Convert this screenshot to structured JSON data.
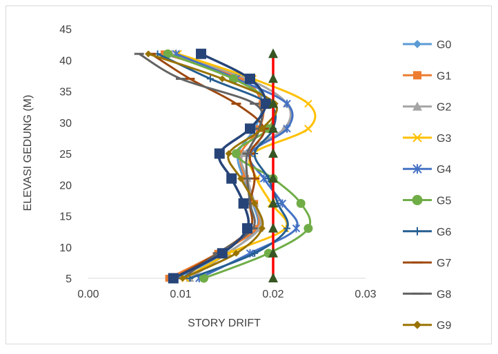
{
  "chart_data": {
    "type": "line",
    "xlabel": "STORY DRIFT",
    "ylabel": "ELEVASI GEDUNG (M)",
    "xlim": [
      0,
      0.03
    ],
    "ylim": [
      5,
      45
    ],
    "x_ticks": [
      "0.00",
      "0.01",
      "0.02",
      "0.03"
    ],
    "y_ticks": [
      "5",
      "10",
      "15",
      "20",
      "25",
      "30",
      "35",
      "40",
      "45"
    ],
    "grid": false,
    "legend_position": "right",
    "smooth": true,
    "series": [
      {
        "name": "G0",
        "color": "#5B9BD5",
        "marker": "diamond",
        "points": [
          [
            0.0094,
            5
          ],
          [
            0.015,
            9
          ],
          [
            0.0182,
            13
          ],
          [
            0.0178,
            17
          ],
          [
            0.0168,
            21
          ],
          [
            0.0162,
            25
          ],
          [
            0.018,
            29
          ],
          [
            0.0188,
            33
          ],
          [
            0.0172,
            37
          ],
          [
            0.0086,
            41
          ]
        ]
      },
      {
        "name": "G1",
        "color": "#ED7D31",
        "marker": "square",
        "points": [
          [
            0.0087,
            5
          ],
          [
            0.014,
            9
          ],
          [
            0.0182,
            13
          ],
          [
            0.018,
            17
          ],
          [
            0.017,
            21
          ],
          [
            0.0165,
            25
          ],
          [
            0.0185,
            29
          ],
          [
            0.0188,
            33
          ],
          [
            0.0165,
            37
          ],
          [
            0.0082,
            41
          ]
        ]
      },
      {
        "name": "G2",
        "color": "#A5A5A5",
        "marker": "triangle",
        "points": [
          [
            0.011,
            5
          ],
          [
            0.015,
            9
          ],
          [
            0.0185,
            13
          ],
          [
            0.018,
            17
          ],
          [
            0.0172,
            21
          ],
          [
            0.0168,
            25
          ],
          [
            0.0212,
            29
          ],
          [
            0.0215,
            33
          ],
          [
            0.0172,
            37
          ],
          [
            0.009,
            41
          ]
        ]
      },
      {
        "name": "G3",
        "color": "#FFC000",
        "marker": "x",
        "points": [
          [
            0.0105,
            5
          ],
          [
            0.0152,
            9
          ],
          [
            0.0213,
            13
          ],
          [
            0.0198,
            17
          ],
          [
            0.0182,
            21
          ],
          [
            0.0178,
            25
          ],
          [
            0.0238,
            29
          ],
          [
            0.0238,
            33
          ],
          [
            0.0178,
            37
          ],
          [
            0.0097,
            41
          ]
        ]
      },
      {
        "name": "G4",
        "color": "#4472C4",
        "marker": "star",
        "points": [
          [
            0.012,
            5
          ],
          [
            0.0175,
            9
          ],
          [
            0.0225,
            13
          ],
          [
            0.021,
            17
          ],
          [
            0.019,
            21
          ],
          [
            0.0175,
            25
          ],
          [
            0.0215,
            29
          ],
          [
            0.0215,
            33
          ],
          [
            0.016,
            37
          ],
          [
            0.0095,
            41
          ]
        ]
      },
      {
        "name": "G5",
        "color": "#70AD47",
        "marker": "circle",
        "points": [
          [
            0.0125,
            5
          ],
          [
            0.0195,
            9
          ],
          [
            0.0238,
            13
          ],
          [
            0.023,
            17
          ],
          [
            0.02,
            21
          ],
          [
            0.016,
            25
          ],
          [
            0.0195,
            29
          ],
          [
            0.0198,
            33
          ],
          [
            0.0157,
            37
          ],
          [
            0.0086,
            41
          ]
        ]
      },
      {
        "name": "G6",
        "color": "#255E91",
        "marker": "plus",
        "points": [
          [
            0.011,
            5
          ],
          [
            0.018,
            9
          ],
          [
            0.0215,
            13
          ],
          [
            0.0205,
            17
          ],
          [
            0.0195,
            21
          ],
          [
            0.018,
            25
          ],
          [
            0.02,
            29
          ],
          [
            0.0195,
            33
          ],
          [
            0.0132,
            37
          ],
          [
            0.0075,
            41
          ]
        ]
      },
      {
        "name": "G7",
        "color": "#9E480E",
        "marker": "dash",
        "points": [
          [
            0.0092,
            5
          ],
          [
            0.014,
            9
          ],
          [
            0.0175,
            13
          ],
          [
            0.0175,
            17
          ],
          [
            0.018,
            21
          ],
          [
            0.0175,
            25
          ],
          [
            0.019,
            29
          ],
          [
            0.016,
            33
          ],
          [
            0.011,
            37
          ],
          [
            0.0068,
            41
          ]
        ]
      },
      {
        "name": "G8",
        "color": "#636363",
        "marker": "dash",
        "points": [
          [
            0.0102,
            5
          ],
          [
            0.014,
            9
          ],
          [
            0.0178,
            13
          ],
          [
            0.0175,
            17
          ],
          [
            0.0172,
            21
          ],
          [
            0.0172,
            25
          ],
          [
            0.0185,
            29
          ],
          [
            0.018,
            33
          ],
          [
            0.01,
            37
          ],
          [
            0.0055,
            41
          ]
        ]
      },
      {
        "name": "G9",
        "color": "#997300",
        "marker": "diamond",
        "points": [
          [
            0.0102,
            5
          ],
          [
            0.016,
            9
          ],
          [
            0.0188,
            13
          ],
          [
            0.018,
            17
          ],
          [
            0.0165,
            21
          ],
          [
            0.0152,
            25
          ],
          [
            0.0188,
            29
          ],
          [
            0.0202,
            33
          ],
          [
            0.0145,
            37
          ],
          [
            0.0065,
            41
          ]
        ]
      },
      {
        "name": "",
        "color": "#264478",
        "marker": "bigsquare",
        "points": [
          [
            0.0092,
            5
          ],
          [
            0.0145,
            9
          ],
          [
            0.0172,
            13
          ],
          [
            0.0168,
            17
          ],
          [
            0.0155,
            21
          ],
          [
            0.0142,
            25
          ],
          [
            0.0175,
            29
          ],
          [
            0.0192,
            33
          ],
          [
            0.0175,
            37
          ],
          [
            0.0122,
            41
          ]
        ]
      },
      {
        "name": "",
        "color": "#FF0000",
        "marker": "triangle-green",
        "marker_color": "#375623",
        "points": [
          [
            0.02,
            5
          ],
          [
            0.02,
            9
          ],
          [
            0.02,
            13
          ],
          [
            0.02,
            17
          ],
          [
            0.02,
            21
          ],
          [
            0.02,
            25
          ],
          [
            0.02,
            29
          ],
          [
            0.02,
            33
          ],
          [
            0.02,
            37
          ],
          [
            0.02,
            41
          ]
        ]
      }
    ]
  }
}
